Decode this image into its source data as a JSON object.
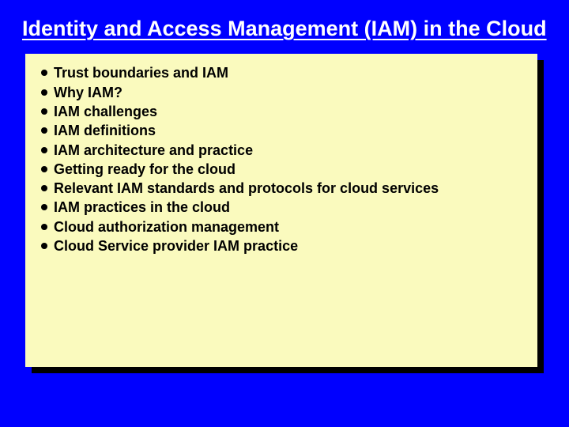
{
  "slide": {
    "title": "Identity and Access Management (IAM) in the Cloud",
    "background_color": "#0000ff",
    "title_color": "#ffffff",
    "title_fontsize": 27,
    "panel": {
      "background_color": "#fafabe",
      "shadow_color": "#000000",
      "text_color": "#000000",
      "bullet_color": "#000000",
      "fontsize": 18,
      "items": [
        "Trust boundaries and IAM",
        "Why IAM?",
        "IAM challenges",
        "IAM definitions",
        "IAM architecture and practice",
        "Getting ready for the cloud",
        "Relevant IAM standards and protocols for cloud services",
        "IAM practices in the cloud",
        "Cloud authorization management",
        "Cloud Service provider IAM practice"
      ]
    }
  }
}
